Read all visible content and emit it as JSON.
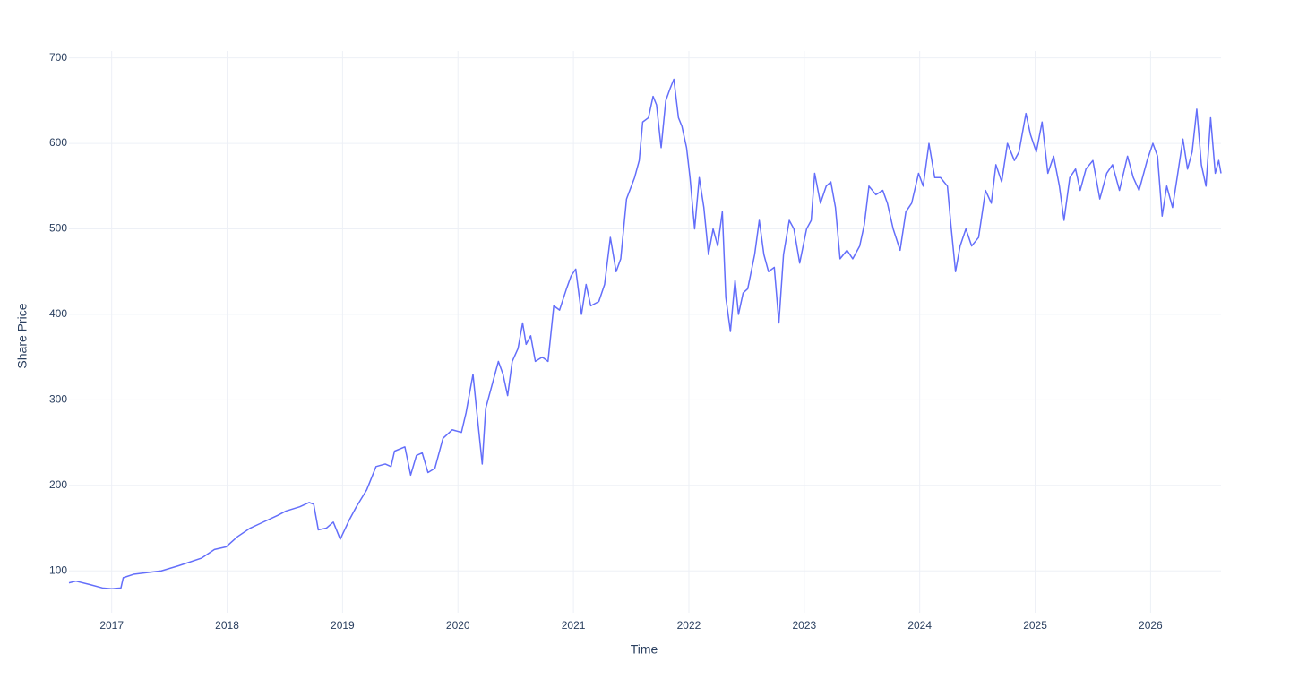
{
  "chart_data": {
    "type": "line",
    "xlabel": "Time",
    "ylabel": "Share Price",
    "color": "#636efa",
    "grid": true,
    "xlim": [
      2016.63,
      2026.61
    ],
    "ylim": [
      51,
      708
    ],
    "xticks": [
      2017,
      2018,
      2019,
      2020,
      2021,
      2022,
      2023,
      2024,
      2025,
      2026
    ],
    "yticks": [
      100,
      200,
      300,
      400,
      500,
      600,
      700
    ],
    "x": [
      2016.63,
      2016.69,
      2016.81,
      2016.92,
      2017.0,
      2017.08,
      2017.1,
      2017.19,
      2017.43,
      2017.58,
      2017.78,
      2017.89,
      2017.99,
      2018.09,
      2018.2,
      2018.28,
      2018.44,
      2018.51,
      2018.63,
      2018.71,
      2018.75,
      2018.79,
      2018.86,
      2018.92,
      2018.98,
      2019.06,
      2019.12,
      2019.21,
      2019.29,
      2019.37,
      2019.42,
      2019.45,
      2019.54,
      2019.59,
      2019.64,
      2019.69,
      2019.74,
      2019.8,
      2019.87,
      2019.95,
      2020.03,
      2020.07,
      2020.13,
      2020.16,
      2020.21,
      2020.24,
      2020.3,
      2020.35,
      2020.39,
      2020.43,
      2020.47,
      2020.52,
      2020.56,
      2020.59,
      2020.63,
      2020.67,
      2020.73,
      2020.78,
      2020.83,
      2020.88,
      2020.94,
      2020.98,
      2021.02,
      2021.07,
      2021.11,
      2021.15,
      2021.22,
      2021.27,
      2021.32,
      2021.37,
      2021.41,
      2021.46,
      2021.53,
      2021.57,
      2021.6,
      2021.65,
      2021.69,
      2021.72,
      2021.76,
      2021.8,
      2021.84,
      2021.87,
      2021.91,
      2021.94,
      2021.98,
      2022.01,
      2022.05,
      2022.09,
      2022.13,
      2022.17,
      2022.21,
      2022.25,
      2022.29,
      2022.32,
      2022.36,
      2022.4,
      2022.43,
      2022.47,
      2022.51,
      2022.57,
      2022.61,
      2022.65,
      2022.69,
      2022.74,
      2022.78,
      2022.82,
      2022.87,
      2022.91,
      2022.96,
      2023.02,
      2023.06,
      2023.09,
      2023.14,
      2023.19,
      2023.23,
      2023.27,
      2023.31,
      2023.37,
      2023.42,
      2023.48,
      2023.52,
      2023.56,
      2023.62,
      2023.68,
      2023.72,
      2023.77,
      2023.83,
      2023.88,
      2023.93,
      2023.99,
      2024.03,
      2024.08,
      2024.13,
      2024.18,
      2024.24,
      2024.27,
      2024.31,
      2024.35,
      2024.4,
      2024.45,
      2024.51,
      2024.57,
      2024.62,
      2024.66,
      2024.71,
      2024.76,
      2024.82,
      2024.86,
      2024.92,
      2024.96,
      2025.01,
      2025.06,
      2025.11,
      2025.16,
      2025.21,
      2025.25,
      2025.3,
      2025.35,
      2025.39,
      2025.44,
      2025.5,
      2025.56,
      2025.62,
      2025.67,
      2025.73,
      2025.8,
      2025.85,
      2025.9,
      2025.97,
      2026.02,
      2026.06,
      2026.1,
      2026.14,
      2026.19,
      2026.23,
      2026.28,
      2026.32,
      2026.36,
      2026.4,
      2026.44,
      2026.48,
      2026.52,
      2026.56,
      2026.59,
      2026.61
    ],
    "values": [
      86,
      88,
      84,
      80,
      79,
      80,
      92,
      96,
      100,
      106,
      115,
      125,
      128,
      140,
      150,
      155,
      165,
      170,
      175,
      180,
      178,
      148,
      150,
      157,
      137,
      160,
      175,
      195,
      222,
      225,
      222,
      240,
      245,
      212,
      235,
      238,
      215,
      220,
      255,
      265,
      262,
      285,
      330,
      290,
      225,
      290,
      320,
      345,
      330,
      305,
      345,
      360,
      390,
      365,
      375,
      345,
      350,
      345,
      410,
      405,
      430,
      445,
      453,
      400,
      435,
      410,
      415,
      435,
      490,
      450,
      465,
      535,
      560,
      580,
      625,
      630,
      655,
      645,
      595,
      650,
      665,
      675,
      630,
      620,
      595,
      560,
      500,
      560,
      525,
      470,
      500,
      480,
      520,
      420,
      380,
      440,
      400,
      425,
      430,
      470,
      510,
      470,
      450,
      455,
      390,
      470,
      510,
      500,
      460,
      500,
      510,
      565,
      530,
      550,
      555,
      525,
      465,
      475,
      465,
      480,
      505,
      550,
      540,
      545,
      530,
      500,
      475,
      520,
      530,
      565,
      550,
      600,
      560,
      560,
      550,
      505,
      450,
      480,
      500,
      480,
      490,
      545,
      530,
      575,
      555,
      600,
      580,
      590,
      635,
      610,
      590,
      625,
      565,
      585,
      550,
      510,
      560,
      570,
      545,
      570,
      580,
      535,
      565,
      575,
      545,
      585,
      560,
      545,
      580,
      600,
      585,
      515,
      550,
      525,
      560,
      605,
      570,
      590,
      640,
      575,
      550,
      630,
      565,
      580,
      565
    ]
  }
}
